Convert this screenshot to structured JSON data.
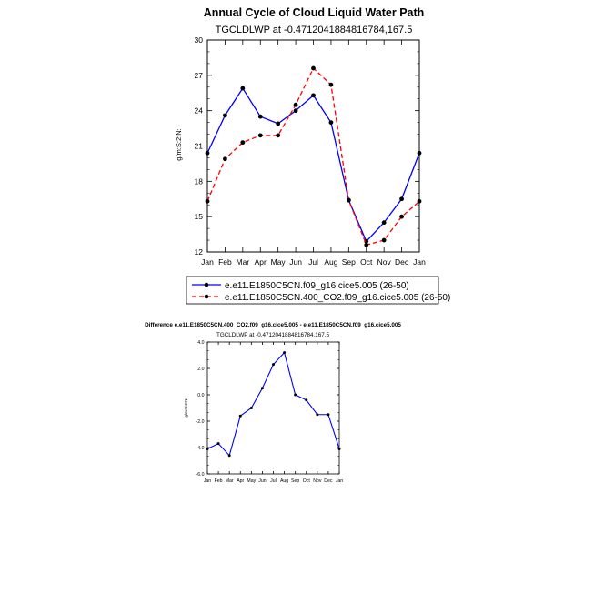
{
  "chart_data": [
    {
      "type": "line",
      "title": "Annual Cycle of Cloud Liquid Water Path",
      "subtitle": "TGCLDLWP at -0.4712041884816784,167.5",
      "ylabel": "g/m:S:2:N:",
      "xlabel": "",
      "categories": [
        "Jan",
        "Feb",
        "Mar",
        "Apr",
        "May",
        "Jun",
        "Jul",
        "Aug",
        "Sep",
        "Oct",
        "Nov",
        "Dec",
        "Jan"
      ],
      "ylim": [
        12,
        30
      ],
      "yticks": [
        "12",
        "15",
        "18",
        "21",
        "24",
        "27",
        "30"
      ],
      "series": [
        {
          "name": "e.e11.E1850C5CN.f09_g16.cice5.005 (26-50)",
          "color": "#0000ff",
          "dash": "solid",
          "values": [
            20.4,
            23.6,
            25.9,
            23.5,
            22.9,
            24.0,
            25.3,
            23.0,
            16.4,
            12.9,
            14.5,
            16.5,
            20.4
          ]
        },
        {
          "name": "e.e11.E1850C5CN.400_CO2.f09_g16.cice5.005 (26-50)",
          "color": "#ff0000",
          "dash": "dashed",
          "values": [
            16.3,
            19.9,
            21.3,
            21.9,
            21.9,
            24.5,
            27.6,
            26.2,
            16.4,
            12.6,
            13.0,
            15.0,
            16.3
          ]
        }
      ]
    },
    {
      "type": "line",
      "title": "Difference e.e11.E1850C5CN.400_CO2.f09_g16.cice5.005 - e.e11.E1850C5CN.f09_g16.cice5.005",
      "subtitle": "TGCLDLWP at -0.4712041884816784,167.5",
      "ylabel": "g/m:S:2:N:",
      "xlabel": "",
      "categories": [
        "Jan",
        "Feb",
        "Mar",
        "Apr",
        "May",
        "Jun",
        "Jul",
        "Aug",
        "Sep",
        "Oct",
        "Nov",
        "Dec",
        "Jan"
      ],
      "ylim": [
        -6.0,
        4.0
      ],
      "yticks": [
        "-6.0",
        "-4.0",
        "-2.0",
        "0.0",
        "2.0",
        "4.0"
      ],
      "series": [
        {
          "name": "Difference",
          "color": "#0000ff",
          "dash": "solid",
          "values": [
            -4.1,
            -3.7,
            -4.6,
            -1.6,
            -1.0,
            0.5,
            2.3,
            3.2,
            0.0,
            -0.4,
            -1.5,
            -1.5,
            -4.1
          ]
        }
      ]
    }
  ]
}
